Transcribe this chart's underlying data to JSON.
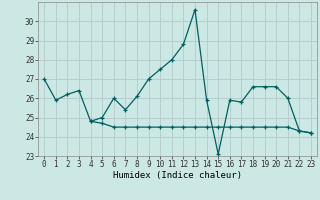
{
  "xlabel": "Humidex (Indice chaleur)",
  "x": [
    0,
    1,
    2,
    3,
    4,
    5,
    6,
    7,
    8,
    9,
    10,
    11,
    12,
    13,
    14,
    15,
    16,
    17,
    18,
    19,
    20,
    21,
    22,
    23
  ],
  "line1": [
    27.0,
    25.9,
    26.2,
    26.4,
    24.8,
    25.0,
    26.0,
    25.4,
    26.1,
    27.0,
    27.5,
    28.0,
    28.8,
    30.6,
    25.9,
    23.1,
    25.9,
    25.8,
    26.6,
    26.6,
    26.6,
    26.0,
    24.3,
    24.2
  ],
  "line2": [
    null,
    null,
    null,
    null,
    24.8,
    24.7,
    24.5,
    24.5,
    24.5,
    24.5,
    24.5,
    24.5,
    24.5,
    24.5,
    24.5,
    24.5,
    24.5,
    24.5,
    24.5,
    24.5,
    24.5,
    24.5,
    24.3,
    24.2
  ],
  "bg_color": "#cce8e4",
  "grid_color": "#b8cece",
  "line_color": "#006060",
  "ylim": [
    23,
    31
  ],
  "yticks": [
    23,
    24,
    25,
    26,
    27,
    28,
    29,
    30
  ],
  "xticks": [
    0,
    1,
    2,
    3,
    4,
    5,
    6,
    7,
    8,
    9,
    10,
    11,
    12,
    13,
    14,
    15,
    16,
    17,
    18,
    19,
    20,
    21,
    22,
    23
  ],
  "tick_fontsize": 5.5,
  "xlabel_fontsize": 6.5
}
